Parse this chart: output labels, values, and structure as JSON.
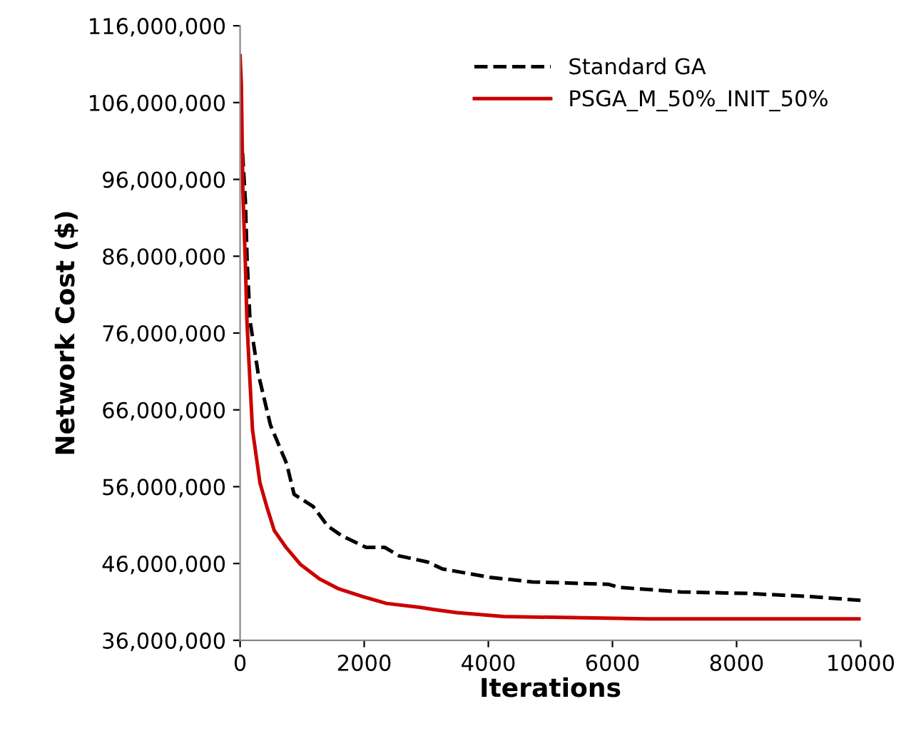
{
  "chart_data": {
    "type": "line",
    "xlabel": "Iterations",
    "ylabel": "Network Cost ($)",
    "xlim": [
      0,
      10000
    ],
    "xticks": [
      0,
      2000,
      4000,
      6000,
      8000,
      10000
    ],
    "ylim": [
      36000000,
      116000000
    ],
    "yticks": [
      {
        "value": 36000000,
        "label": "36,000,000"
      },
      {
        "value": 46000000,
        "label": "46,000,000"
      },
      {
        "value": 56000000,
        "label": "56,000,000"
      },
      {
        "value": 66000000,
        "label": "66,000,000"
      },
      {
        "value": 76000000,
        "label": "76,000,000"
      },
      {
        "value": 86000000,
        "label": "86,000,000"
      },
      {
        "value": 96000000,
        "label": "96,000,000"
      },
      {
        "value": 106000000,
        "label": "106,000,000"
      },
      {
        "value": 116000000,
        "label": "116,000,000"
      }
    ],
    "grid": false,
    "legend": "top right",
    "series": [
      {
        "name": "Standard GA",
        "color": "#000000",
        "line_style": "dashed",
        "x": [
          40,
          85,
          115,
          160,
          290,
          490,
          750,
          870,
          1180,
          1410,
          1640,
          2030,
          2330,
          2560,
          3020,
          3260,
          4020,
          4710,
          5930,
          6100,
          7100,
          8180,
          9190,
          10000
        ],
        "values": [
          99400000,
          93200000,
          85100000,
          77600000,
          70800000,
          64000000,
          59000000,
          55000000,
          53400000,
          50900000,
          49600000,
          48100000,
          48100000,
          47000000,
          46200000,
          45300000,
          44200000,
          43600000,
          43300000,
          42900000,
          42300000,
          42100000,
          41700000,
          41200000
        ]
      },
      {
        "name": "PSGA_M_50%_INIT_50%",
        "color": "#cc0000",
        "line_style": "solid",
        "x": [
          0,
          20,
          45,
          85,
          110,
          140,
          200,
          320,
          430,
          550,
          740,
          970,
          1280,
          1590,
          1970,
          2360,
          2890,
          3130,
          3490,
          4250,
          6560,
          10000
        ],
        "values": [
          112100000,
          108400000,
          94400000,
          85100000,
          77600000,
          72700000,
          63400000,
          56500000,
          53400000,
          50300000,
          48100000,
          45900000,
          44000000,
          42700000,
          41700000,
          40800000,
          40300000,
          40000000,
          39600000,
          39100000,
          38800000,
          38800000
        ]
      }
    ]
  }
}
